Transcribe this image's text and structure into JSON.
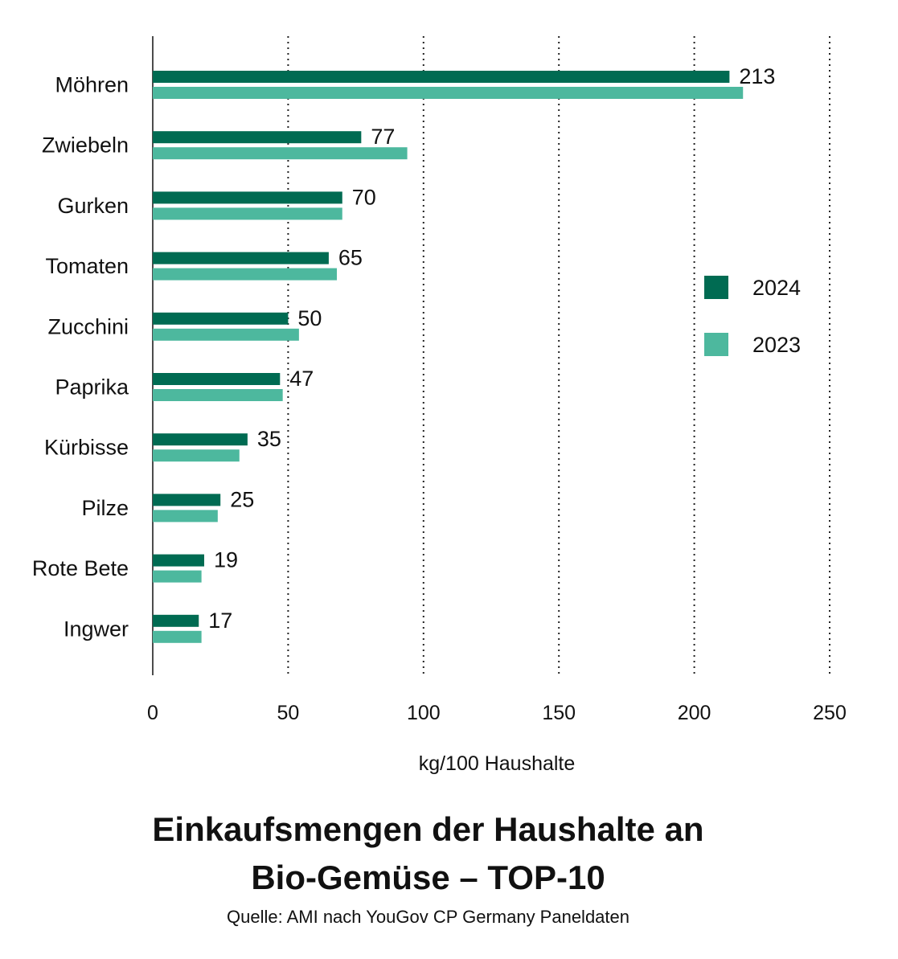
{
  "chart_data": {
    "type": "bar",
    "orientation": "horizontal",
    "title_lines": [
      "Einkaufsmengen der Haushalte an",
      "Bio-Gemüse – TOP-10"
    ],
    "source": "Quelle: AMI nach YouGov CP Germany Paneldaten",
    "xlabel": "kg/100 Haushalte",
    "ylabel": "",
    "xlim": [
      0,
      250
    ],
    "xticks": [
      0,
      50,
      100,
      150,
      200,
      250
    ],
    "grid": "vertical-dotted",
    "legend_position": "right",
    "categories": [
      "Möhren",
      "Zwiebeln",
      "Gurken",
      "Tomaten",
      "Zucchini",
      "Paprika",
      "Kürbisse",
      "Pilze",
      "Rote Bete",
      "Ingwer"
    ],
    "series": [
      {
        "name": "2024",
        "color": "#006b52",
        "values": [
          213,
          77,
          70,
          65,
          50,
          47,
          35,
          25,
          19,
          17
        ],
        "data_labels": [
          "213",
          "77",
          "70",
          "65",
          "50",
          "47",
          "35",
          "25",
          "19",
          "17"
        ]
      },
      {
        "name": "2023",
        "color": "#4db89e",
        "values": [
          218,
          94,
          70,
          68,
          54,
          48,
          32,
          24,
          18,
          18
        ]
      }
    ]
  }
}
